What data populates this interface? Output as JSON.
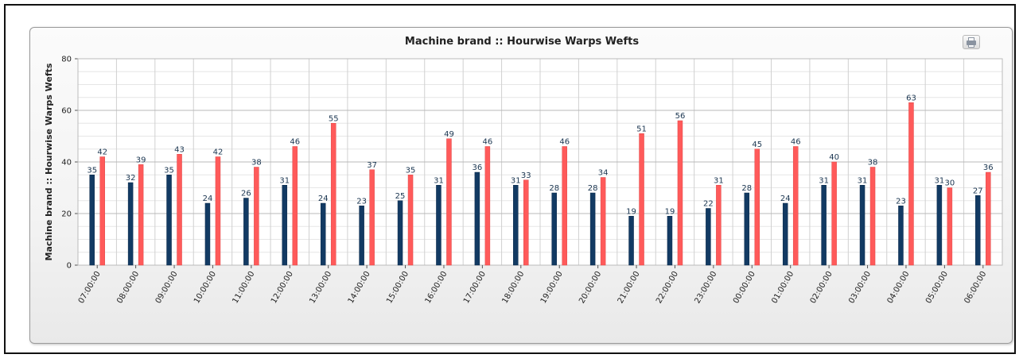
{
  "chart_data": {
    "type": "bar",
    "title": "Machine brand :: Hourwise Warps Wefts",
    "ylabel": "Machine brand :: Hourwise Warps Wefts",
    "xlabel": "",
    "ylim": [
      0,
      80
    ],
    "yticks": [
      "0",
      "20",
      "40",
      "60",
      "80"
    ],
    "grid": true,
    "categories": [
      "07:00:00",
      "08:00:00",
      "09:00:00",
      "10:00:00",
      "11:00:00",
      "12:00:00",
      "13:00:00",
      "14:00:00",
      "15:00:00",
      "16:00:00",
      "17:00:00",
      "18:00:00",
      "19:00:00",
      "20:00:00",
      "21:00:00",
      "22:00:00",
      "23:00:00",
      "00:00:00",
      "01:00:00",
      "02:00:00",
      "03:00:00",
      "04:00:00",
      "05:00:00",
      "06:00:00"
    ],
    "series": [
      {
        "color": "#123a63",
        "values": [
          35,
          32,
          35,
          24,
          26,
          31,
          24,
          23,
          25,
          31,
          36,
          31,
          28,
          28,
          19,
          19,
          22,
          28,
          24,
          31,
          31,
          23,
          31,
          27
        ]
      },
      {
        "color": "#ff5a5a",
        "values": [
          42,
          39,
          43,
          42,
          38,
          46,
          55,
          37,
          35,
          49,
          46,
          33,
          46,
          34,
          51,
          56,
          31,
          45,
          46,
          40,
          38,
          63,
          30,
          36
        ]
      }
    ]
  },
  "toolbar": {
    "print_icon": "printer-icon"
  }
}
